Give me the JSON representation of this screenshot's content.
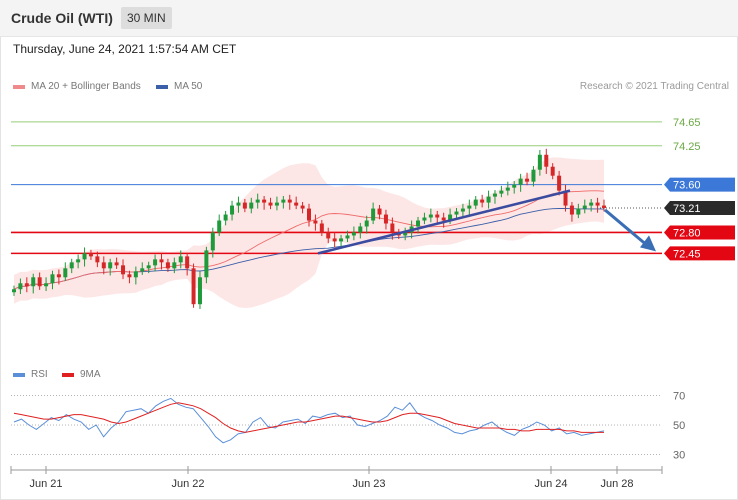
{
  "header": {
    "instrument": "Crude Oil (WTI)",
    "interval": "30 MIN"
  },
  "timestamp": "Thursday, June 24, 2021 1:57:54 AM CET",
  "legend": {
    "ma20": "MA 20 + Bollinger Bands",
    "ma50": "MA 50",
    "copyright": "Research © 2021 Trading Central"
  },
  "rsi_legend": {
    "rsi": "RSI",
    "ma9": "9MA"
  },
  "colors": {
    "up": "#1e9a3a",
    "down": "#d62728",
    "ma20": "#ef6b6b",
    "ma50": "#3b5fa8",
    "bollinger": "#fde3e3",
    "support": "#e30613",
    "resistance": "#3c78d8",
    "target": "#8cc76a",
    "trend": "#3b4ba0",
    "arrow": "#3a6eb5",
    "current": "#2a2a2a",
    "rsi": "#5b8fd8",
    "rsi_ma": "#e02020"
  },
  "chart_data": [
    {
      "type": "candlestick",
      "title": "Crude Oil (WTI)",
      "ylim": [
        70.8,
        75.1
      ],
      "x_ticks": [
        "Jun 21",
        "Jun 22",
        "Jun 23",
        "Jun 24",
        "Jun 28"
      ],
      "series": [
        {
          "name": "MA 20 + Bollinger Bands"
        },
        {
          "name": "MA 50"
        }
      ],
      "levels": [
        {
          "value": 74.65,
          "label": "74.65",
          "kind": "target"
        },
        {
          "value": 74.25,
          "label": "74.25",
          "kind": "target"
        },
        {
          "value": 73.6,
          "label": "73.60",
          "kind": "resistance"
        },
        {
          "value": 73.21,
          "label": "73.21",
          "kind": "current"
        },
        {
          "value": 72.8,
          "label": "72.80",
          "kind": "support"
        },
        {
          "value": 72.45,
          "label": "72.45",
          "kind": "support"
        }
      ],
      "current_price": 73.21,
      "trendline": {
        "from": 72.45,
        "to": 73.5
      },
      "forecast_arrow": {
        "from": 73.21,
        "to": 72.45
      },
      "closes": [
        71.85,
        71.95,
        71.9,
        72.05,
        71.9,
        71.95,
        72.1,
        72.05,
        72.2,
        72.3,
        72.35,
        72.45,
        72.4,
        72.3,
        72.2,
        72.3,
        72.25,
        72.1,
        72.05,
        72.15,
        72.2,
        72.25,
        72.35,
        72.3,
        72.2,
        72.3,
        72.4,
        72.2,
        71.6,
        72.05,
        72.5,
        72.8,
        73.0,
        73.1,
        73.25,
        73.3,
        73.2,
        73.3,
        73.35,
        73.3,
        73.25,
        73.3,
        73.35,
        73.3,
        73.25,
        73.2,
        73.0,
        72.95,
        72.8,
        72.7,
        72.65,
        72.7,
        72.75,
        72.8,
        72.9,
        73.0,
        73.2,
        73.1,
        72.95,
        72.8,
        72.75,
        72.8,
        72.9,
        73.0,
        73.05,
        73.1,
        73.05,
        73.0,
        73.1,
        73.15,
        73.2,
        73.25,
        73.35,
        73.3,
        73.4,
        73.45,
        73.5,
        73.55,
        73.6,
        73.7,
        73.65,
        73.85,
        74.1,
        73.9,
        73.75,
        73.5,
        73.25,
        73.1,
        73.2,
        73.25,
        73.3,
        73.25,
        73.21
      ]
    },
    {
      "type": "line",
      "title": "RSI",
      "ylim": [
        25,
        75
      ],
      "y_ticks": [
        70,
        50,
        30
      ],
      "series": [
        {
          "name": "RSI",
          "values": [
            52,
            54,
            50,
            47,
            51,
            55,
            53,
            57,
            54,
            52,
            47,
            50,
            42,
            48,
            52,
            59,
            60,
            61,
            58,
            63,
            66,
            68,
            64,
            62,
            61,
            55,
            49,
            42,
            38,
            40,
            44,
            45,
            52,
            55,
            49,
            48,
            52,
            53,
            54,
            51,
            56,
            55,
            57,
            58,
            55,
            56,
            50,
            49,
            51,
            53,
            56,
            62,
            60,
            65,
            58,
            55,
            53,
            50,
            48,
            45,
            44,
            46,
            47,
            50,
            52,
            48,
            45,
            43,
            47,
            49,
            52,
            50,
            46,
            48,
            44,
            45,
            43,
            44,
            45,
            46
          ]
        },
        {
          "name": "9MA",
          "values": [
            58,
            57,
            56,
            55,
            54,
            54,
            55,
            56,
            57,
            57,
            56,
            55,
            54,
            52,
            51,
            52,
            54,
            56,
            58,
            60,
            62,
            64,
            65,
            64,
            63,
            61,
            58,
            55,
            51,
            48,
            46,
            45,
            46,
            47,
            48,
            49,
            50,
            51,
            52,
            52,
            53,
            54,
            55,
            56,
            56,
            55,
            54,
            53,
            52,
            52,
            53,
            55,
            57,
            58,
            58,
            57,
            56,
            55,
            53,
            51,
            50,
            49,
            48,
            48,
            48,
            48,
            47,
            47,
            46,
            46,
            47,
            47,
            47,
            47,
            46,
            46,
            45,
            45,
            45,
            45
          ]
        }
      ]
    }
  ]
}
